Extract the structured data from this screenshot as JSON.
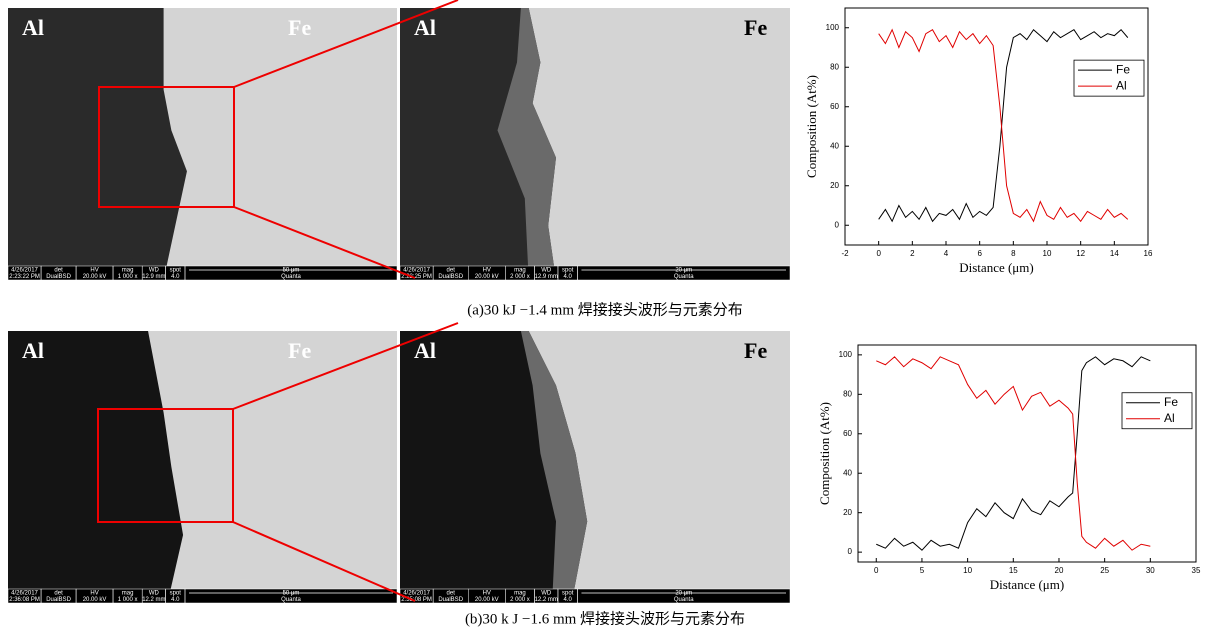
{
  "panels": [
    {
      "caption": "(a)30 kJ −1.4 mm 焊接接头波形与元素分布",
      "images": [
        {
          "left_label": "Al",
          "right_label": "Fe",
          "info": [
            "4/26/2017",
            "2:23:22 PM",
            "det",
            "DualBSD",
            "HV",
            "20.00 kV",
            "mag",
            "1 000 x",
            "WD",
            "12.9 mm",
            "spot",
            "4.0",
            "50 μm",
            "Quanta"
          ]
        },
        {
          "left_label": "Al",
          "right_label": "Fe",
          "info": [
            "4/26/2017",
            "2:22:25 PM",
            "det",
            "DualBSD",
            "HV",
            "20.00 kV",
            "mag",
            "2 000 x",
            "WD",
            "12.9 mm",
            "spot",
            "4.0",
            "20 μm",
            "Quanta"
          ]
        }
      ]
    },
    {
      "caption": "(b)30 k J −1.6 mm 焊接接头波形与元素分布",
      "images": [
        {
          "left_label": "Al",
          "right_label": "Fe",
          "info": [
            "4/26/2017",
            "2:36:08 PM",
            "det",
            "DualBSD",
            "HV",
            "20.00 kV",
            "mag",
            "1 000 x",
            "WD",
            "12.2 mm",
            "spot",
            "4.0",
            "50 μm",
            "Quanta"
          ]
        },
        {
          "left_label": "Al",
          "right_label": "Fe",
          "info": [
            "4/26/2017",
            "2:35:08 PM",
            "det",
            "DualBSD",
            "HV",
            "20.00 kV",
            "mag",
            "2 000 x",
            "WD",
            "12.2 mm",
            "spot",
            "4.0",
            "20 μm",
            "Quanta"
          ]
        }
      ]
    }
  ],
  "chart_data": [
    {
      "type": "line",
      "x_label": "Distance (μm)",
      "y_label": "Composition (At%)",
      "legend": "upper right",
      "xlim": [
        -2,
        16
      ],
      "ylim": [
        -10,
        110
      ],
      "xticks": [
        -2,
        0,
        2,
        4,
        6,
        8,
        10,
        12,
        14,
        16
      ],
      "yticks": [
        0,
        20,
        40,
        60,
        80,
        100
      ],
      "x": [
        0,
        0.4,
        0.8,
        1.2,
        1.6,
        2,
        2.4,
        2.8,
        3.2,
        3.6,
        4,
        4.4,
        4.8,
        5.2,
        5.6,
        6,
        6.4,
        6.8,
        7.2,
        7.6,
        8,
        8.4,
        8.8,
        9.2,
        9.6,
        10,
        10.4,
        10.8,
        11.2,
        11.6,
        12,
        12.4,
        12.8,
        13.2,
        13.6,
        14,
        14.4,
        14.8
      ],
      "series": [
        {
          "name": "Fe",
          "color": "#000000",
          "values": [
            3,
            8,
            2,
            10,
            4,
            7,
            3,
            9,
            2,
            6,
            5,
            8,
            3,
            11,
            4,
            7,
            5,
            9,
            40,
            80,
            95,
            97,
            94,
            99,
            96,
            93,
            98,
            95,
            97,
            99,
            94,
            96,
            98,
            95,
            97,
            96,
            99,
            95
          ]
        },
        {
          "name": "Al",
          "color": "#e00000",
          "values": [
            97,
            92,
            99,
            90,
            98,
            95,
            88,
            97,
            99,
            93,
            96,
            90,
            98,
            94,
            97,
            92,
            96,
            91,
            60,
            20,
            6,
            4,
            8,
            2,
            12,
            5,
            3,
            9,
            4,
            6,
            2,
            7,
            5,
            3,
            8,
            4,
            6,
            3
          ]
        }
      ]
    },
    {
      "type": "line",
      "x_label": "Distance (μm)",
      "y_label": "Composition (At%)",
      "legend": "upper right",
      "xlim": [
        -2,
        35
      ],
      "ylim": [
        -5,
        105
      ],
      "xticks": [
        0,
        5,
        10,
        15,
        20,
        25,
        30,
        35
      ],
      "yticks": [
        0,
        20,
        40,
        60,
        80,
        100
      ],
      "x": [
        0,
        1,
        2,
        3,
        4,
        5,
        6,
        7,
        8,
        9,
        10,
        11,
        12,
        13,
        14,
        15,
        16,
        17,
        18,
        19,
        20,
        21,
        21.5,
        22,
        22.5,
        23,
        24,
        25,
        26,
        27,
        28,
        29,
        30
      ],
      "series": [
        {
          "name": "Fe",
          "color": "#000000",
          "values": [
            4,
            2,
            7,
            3,
            5,
            1,
            6,
            3,
            4,
            2,
            15,
            22,
            18,
            25,
            20,
            17,
            27,
            21,
            19,
            26,
            23,
            28,
            30,
            60,
            92,
            96,
            99,
            95,
            98,
            97,
            94,
            99,
            97
          ]
        },
        {
          "name": "Al",
          "color": "#e00000",
          "values": [
            97,
            95,
            99,
            94,
            98,
            96,
            93,
            99,
            97,
            95,
            85,
            78,
            82,
            75,
            80,
            84,
            72,
            79,
            81,
            74,
            77,
            73,
            70,
            35,
            8,
            5,
            2,
            7,
            3,
            6,
            1,
            4,
            3
          ]
        }
      ]
    }
  ]
}
